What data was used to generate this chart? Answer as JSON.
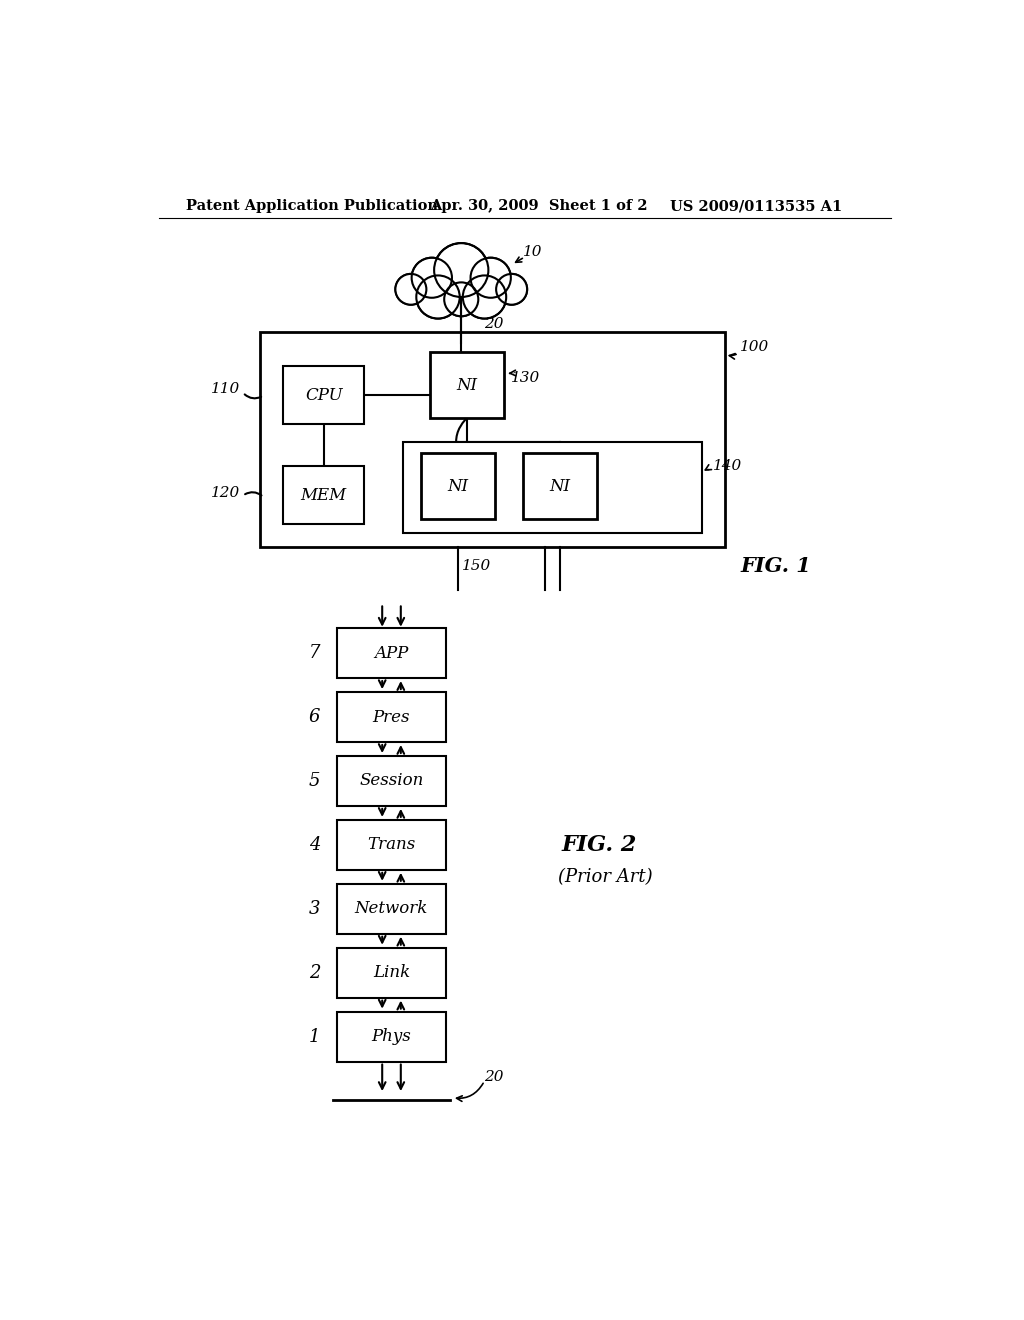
{
  "bg_color": "#ffffff",
  "header_left": "Patent Application Publication",
  "header_mid": "Apr. 30, 2009  Sheet 1 of 2",
  "header_right": "US 2009/0113535 A1",
  "fig1_label": "FIG. 1",
  "fig2_label": "FIG. 2",
  "fig2_sublabel": "(Prior Art)",
  "label_10": "10",
  "label_20_fig1": "20",
  "label_20_fig2": "20",
  "label_100": "100",
  "label_110": "110",
  "label_120": "120",
  "label_130": "130",
  "label_140": "140",
  "label_150": "150",
  "osi_layers": [
    "APP",
    "Pres",
    "Session",
    "Trans",
    "Network",
    "Link",
    "Phys"
  ],
  "osi_numbers": [
    "7",
    "6",
    "5",
    "4",
    "3",
    "2",
    "1"
  ]
}
